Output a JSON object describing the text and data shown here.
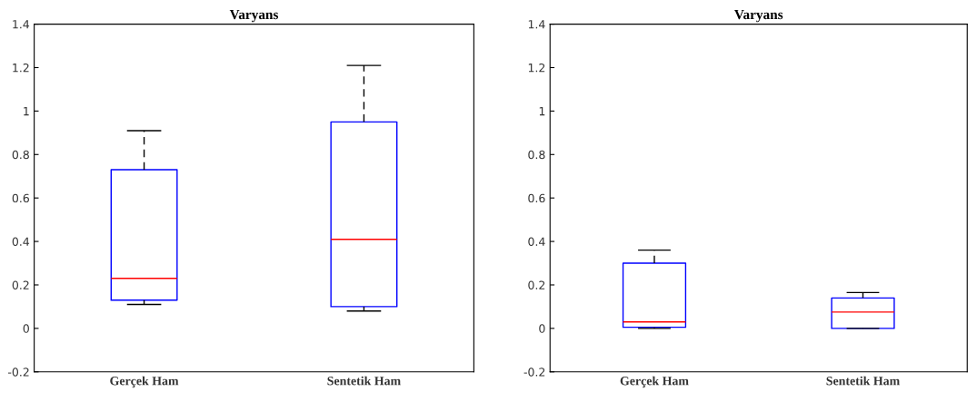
{
  "chart_data": [
    {
      "type": "box",
      "title": "Varyans",
      "categories": [
        "Gerçek Ham",
        "Sentetik Ham"
      ],
      "ylim": [
        -0.2,
        1.4
      ],
      "yticks": [
        -0.2,
        0,
        0.2,
        0.4,
        0.6,
        0.8,
        1,
        1.2,
        1.4
      ],
      "color": "#0000ff",
      "grid": false,
      "boxes": [
        {
          "low": 0.11,
          "q1": 0.13,
          "median": 0.23,
          "q3": 0.73,
          "high": 0.91
        },
        {
          "low": 0.08,
          "q1": 0.1,
          "median": 0.41,
          "q3": 0.95,
          "high": 1.21
        }
      ]
    },
    {
      "type": "box",
      "title": "Varyans",
      "categories": [
        "Gerçek Ham",
        "Sentetik Ham"
      ],
      "ylim": [
        -0.2,
        1.4
      ],
      "yticks": [
        -0.2,
        0,
        0.2,
        0.4,
        0.6,
        0.8,
        1,
        1.2,
        1.4
      ],
      "color": "#0000ff",
      "grid": false,
      "boxes": [
        {
          "low": 0,
          "q1": 0.005,
          "median": 0.03,
          "q3": 0.3,
          "high": 0.36
        },
        {
          "low": 0,
          "q1": 0,
          "median": 0.075,
          "q3": 0.14,
          "high": 0.165
        }
      ]
    }
  ]
}
